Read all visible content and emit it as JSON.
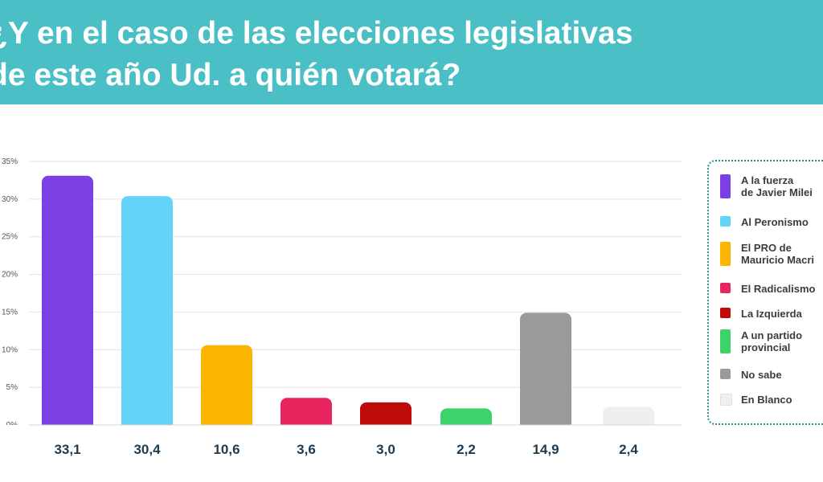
{
  "title": {
    "line1": "¿Y en el caso de las elecciones legislativas",
    "line2": "de este año Ud. a quién votará?"
  },
  "chart_data": {
    "type": "bar",
    "title": "¿Y en el caso de las elecciones legislativas de este año Ud. a quién votará?",
    "categories": [
      "A la fuerza de Javier Milei",
      "Al Peronismo",
      "El PRO de Mauricio Macri",
      "El Radicalismo",
      "La Izquierda",
      "A un partido provincial",
      "No sabe",
      "En Blanco"
    ],
    "values": [
      33.1,
      30.4,
      10.6,
      3.6,
      3.0,
      2.2,
      14.9,
      2.4
    ],
    "value_labels": [
      "33,1",
      "30,4",
      "10,6",
      "3,6",
      "3,0",
      "2,2",
      "14,9",
      "2,4"
    ],
    "colors": [
      "#7b3fe4",
      "#63d4f8",
      "#fbb400",
      "#e8255e",
      "#c00b0b",
      "#3dd36a",
      "#9a9a9a",
      "#efefef"
    ],
    "ylim": [
      0,
      35
    ],
    "yticks": [
      0,
      5,
      10,
      15,
      20,
      25,
      30,
      35
    ],
    "ytick_labels": [
      "0%",
      "5%",
      "10%",
      "15%",
      "20%",
      "25%",
      "30%",
      "35%"
    ],
    "grid": true,
    "legend_position": "right",
    "legend": [
      "A la fuerza\nde Javier Milei",
      "Al Peronismo",
      "El PRO de\nMauricio Macri",
      "El Radicalismo",
      "La Izquierda",
      "A un partido\nprovincial",
      "No sabe",
      "En Blanco"
    ]
  }
}
